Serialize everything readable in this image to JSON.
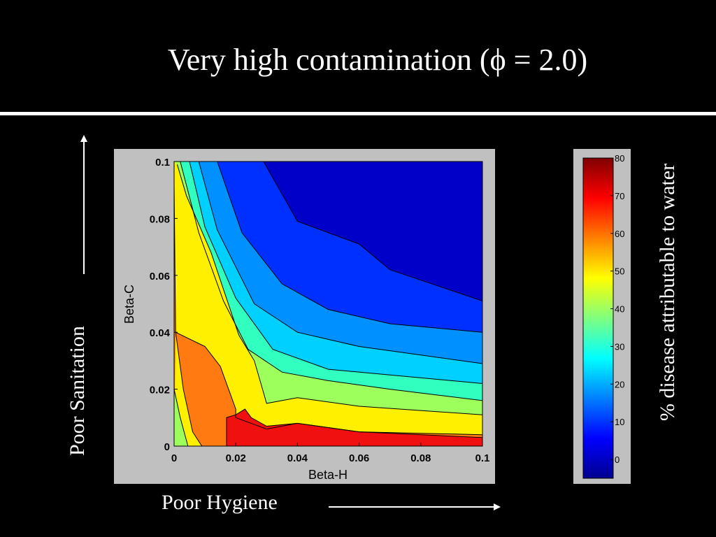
{
  "slide": {
    "title": "Very high contamination (ϕ = 2.0)",
    "y_arrow_label": "Poor Sanitation",
    "x_arrow_label": "Poor Hygiene",
    "colorbar_label": "% disease attributable to water"
  },
  "chart_data": {
    "type": "contour",
    "xlabel": "Beta-H",
    "ylabel": "Beta-C",
    "xlim": [
      0,
      0.1
    ],
    "ylim": [
      0,
      0.1
    ],
    "xticks": [
      "0",
      "0.02",
      "0.04",
      "0.06",
      "0.08",
      "0.1"
    ],
    "yticks": [
      "0",
      "0.02",
      "0.04",
      "0.06",
      "0.08",
      "0.1"
    ],
    "grid": false,
    "colorbar": {
      "ticks": [
        "80",
        "70",
        "60",
        "50",
        "40",
        "30",
        "20",
        "10",
        "0"
      ],
      "range": [
        -5,
        80
      ],
      "colormap": "jet"
    },
    "contour_bands": [
      {
        "level_low": 5,
        "level_high": 10,
        "color": "#0030ff",
        "boundary": [
          [
            0.029,
            0.1
          ],
          [
            0.04,
            0.079
          ],
          [
            0.06,
            0.071
          ],
          [
            0.07,
            0.062
          ],
          [
            0.1,
            0.051
          ]
        ]
      },
      {
        "level_low": 10,
        "level_high": 20,
        "color": "#0090ff",
        "boundary": [
          [
            0.014,
            0.1
          ],
          [
            0.022,
            0.075
          ],
          [
            0.035,
            0.057
          ],
          [
            0.05,
            0.048
          ],
          [
            0.07,
            0.043
          ],
          [
            0.1,
            0.04
          ]
        ]
      },
      {
        "level_low": 20,
        "level_high": 30,
        "color": "#00d0ff",
        "boundary": [
          [
            0.008,
            0.1
          ],
          [
            0.014,
            0.076
          ],
          [
            0.026,
            0.05
          ],
          [
            0.04,
            0.04
          ],
          [
            0.06,
            0.035
          ],
          [
            0.1,
            0.029
          ]
        ]
      },
      {
        "level_low": 30,
        "level_high": 40,
        "color": "#30ffc0",
        "boundary": [
          [
            0.005,
            0.1
          ],
          [
            0.01,
            0.077
          ],
          [
            0.02,
            0.052
          ],
          [
            0.032,
            0.034
          ],
          [
            0.05,
            0.027
          ],
          [
            0.07,
            0.025
          ],
          [
            0.1,
            0.022
          ]
        ]
      },
      {
        "level_low": 40,
        "level_high": 50,
        "color": "#9cff5c",
        "boundary": [
          [
            0.002,
            0.1
          ],
          [
            0.008,
            0.075
          ],
          [
            0.016,
            0.051
          ],
          [
            0.024,
            0.034
          ],
          [
            0.035,
            0.026
          ],
          [
            0.05,
            0.023
          ],
          [
            0.07,
            0.02
          ],
          [
            0.1,
            0.016
          ]
        ]
      },
      {
        "level_low": 50,
        "level_high": 60,
        "color": "#fff000",
        "boundary": [
          [
            0.001,
            0.099
          ],
          [
            0.004,
            0.088
          ],
          [
            0.012,
            0.068
          ],
          [
            0.021,
            0.039
          ],
          [
            0.026,
            0.03
          ],
          [
            0.03,
            0.015
          ],
          [
            0.04,
            0.017
          ],
          [
            0.06,
            0.014
          ],
          [
            0.1,
            0.011
          ]
        ]
      },
      {
        "level_low": 60,
        "level_high": 70,
        "color": "#ff7a10",
        "boundary": [
          [
            0.0,
            0.092
          ],
          [
            0.0005,
            0.04
          ],
          [
            0.01,
            0.035
          ],
          [
            0.015,
            0.028
          ],
          [
            0.02,
            0.013
          ],
          [
            0.02,
            0.01
          ],
          [
            0.03,
            0.006
          ],
          [
            0.04,
            0.008
          ],
          [
            0.06,
            0.005
          ],
          [
            0.1,
            0.004
          ]
        ]
      },
      {
        "level_low": 70,
        "level_high": 80,
        "color": "#f01010",
        "boundary": [
          [
            0.017,
            0.0
          ],
          [
            0.017,
            0.01
          ],
          [
            0.02,
            0.011
          ],
          [
            0.023,
            0.013
          ],
          [
            0.025,
            0.01
          ],
          [
            0.03,
            0.007
          ],
          [
            0.04,
            0.008
          ],
          [
            0.06,
            0.005
          ],
          [
            0.1,
            0.003
          ],
          [
            0.1,
            0.0
          ]
        ]
      }
    ],
    "left_edge_low_band": {
      "level_low": 40,
      "level_high": 50,
      "color": "#9cff5c",
      "boundary": [
        [
          0.0,
          0.02
        ],
        [
          0.002,
          0.01
        ],
        [
          0.004,
          0.002
        ],
        [
          0.0045,
          0.0
        ]
      ]
    },
    "left_edge_mid_band": {
      "level_low": 50,
      "level_high": 60,
      "color": "#fff000",
      "boundary": [
        [
          0.0005,
          0.04
        ],
        [
          0.003,
          0.02
        ],
        [
          0.006,
          0.005
        ],
        [
          0.009,
          0.0
        ]
      ]
    }
  }
}
